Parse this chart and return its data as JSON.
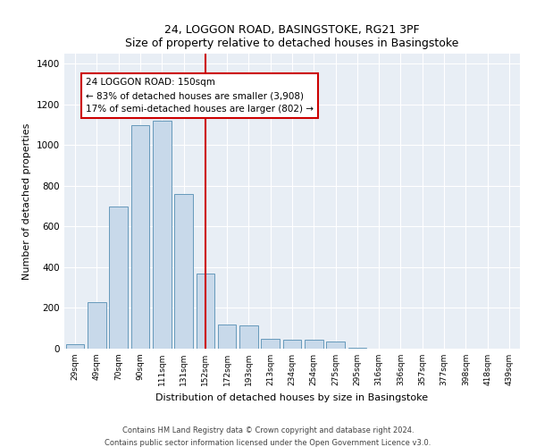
{
  "title1": "24, LOGGON ROAD, BASINGSTOKE, RG21 3PF",
  "title2": "Size of property relative to detached houses in Basingstoke",
  "xlabel": "Distribution of detached houses by size in Basingstoke",
  "ylabel": "Number of detached properties",
  "categories": [
    "29sqm",
    "49sqm",
    "70sqm",
    "90sqm",
    "111sqm",
    "131sqm",
    "152sqm",
    "172sqm",
    "193sqm",
    "213sqm",
    "234sqm",
    "254sqm",
    "275sqm",
    "295sqm",
    "316sqm",
    "336sqm",
    "357sqm",
    "377sqm",
    "398sqm",
    "418sqm",
    "439sqm"
  ],
  "values": [
    20,
    230,
    700,
    1100,
    1120,
    760,
    370,
    120,
    115,
    50,
    45,
    45,
    35,
    5,
    0,
    0,
    0,
    0,
    0,
    0,
    0
  ],
  "bar_color": "#c8d9ea",
  "bar_edge_color": "#6699bb",
  "vline_x_index": 6,
  "vline_color": "#cc0000",
  "annotation_text": "24 LOGGON ROAD: 150sqm\n← 83% of detached houses are smaller (3,908)\n17% of semi-detached houses are larger (802) →",
  "annotation_box_color": "#ffffff",
  "annotation_box_edge": "#cc0000",
  "ylim": [
    0,
    1450
  ],
  "yticks": [
    0,
    200,
    400,
    600,
    800,
    1000,
    1200,
    1400
  ],
  "footnote1": "Contains HM Land Registry data © Crown copyright and database right 2024.",
  "footnote2": "Contains public sector information licensed under the Open Government Licence v3.0.",
  "bg_color": "#ffffff",
  "plot_bg_color": "#e8eef5"
}
